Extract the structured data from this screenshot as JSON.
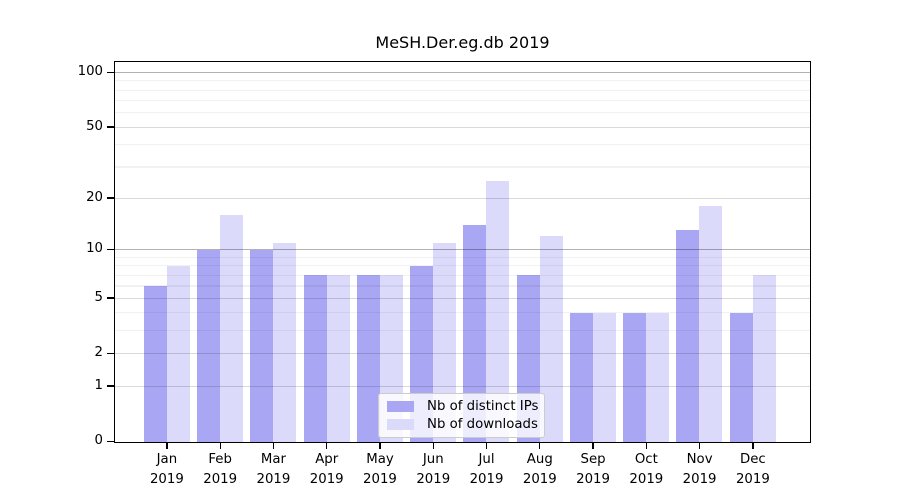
{
  "title": "MeSH.Der.eg.db 2019",
  "chart_data": {
    "type": "bar",
    "title": "MeSH.Der.eg.db 2019",
    "xlabel": "",
    "ylabel": "",
    "year_label": "2019",
    "categories": [
      "Jan",
      "Feb",
      "Mar",
      "Apr",
      "May",
      "Jun",
      "Jul",
      "Aug",
      "Sep",
      "Oct",
      "Nov",
      "Dec"
    ],
    "series": [
      {
        "name": "Nb of distinct IPs",
        "color": "#a9a7f4",
        "values": [
          6,
          10,
          10,
          7,
          7,
          8,
          14,
          7,
          4,
          4,
          13,
          4
        ]
      },
      {
        "name": "Nb of downloads",
        "color": "#dbdafa",
        "values": [
          8,
          16,
          11,
          7,
          7,
          11,
          25,
          12,
          4,
          4,
          18,
          7
        ]
      }
    ],
    "y_scale": "log1p",
    "ylim": [
      0,
      100
    ],
    "y_ticks": [
      0,
      1,
      2,
      5,
      10,
      20,
      50,
      100
    ],
    "y_minor_ticks": [
      3,
      4,
      6,
      7,
      8,
      9,
      30,
      40,
      60,
      70,
      80,
      90
    ],
    "y_emphasized_gridlines": [
      10,
      100
    ],
    "grid": true,
    "legend_position": "lower center",
    "colors": {
      "grid_major": "#d9d9d9",
      "grid_strong": "#b3b3b3",
      "grid_minor": "#efefef",
      "axis": "#000000",
      "legend_border": "#cccccc"
    }
  }
}
